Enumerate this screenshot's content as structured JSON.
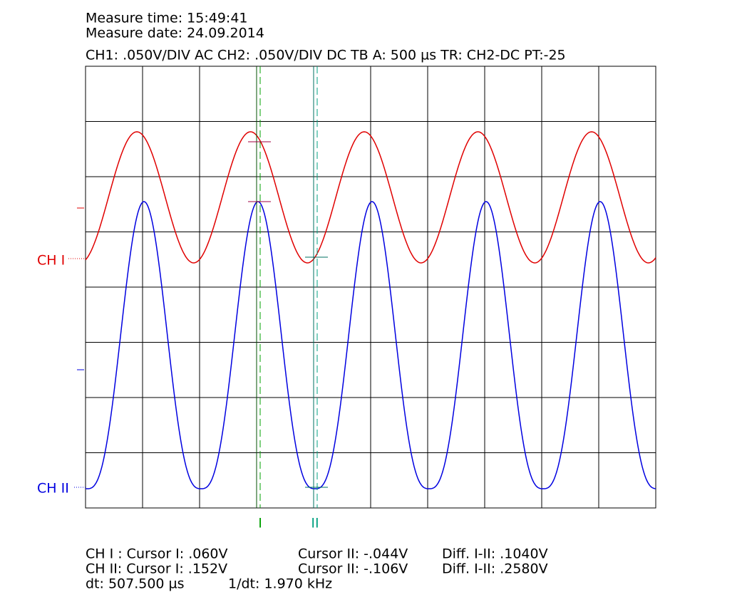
{
  "header": {
    "measure_time": "Measure time: 15:49:41",
    "measure_date": "Measure date: 24.09.2014",
    "settings": "CH1: .050V/DIV AC  CH2: .050V/DIV DC   TB A: 500 µs  TR: CH2-DC  PT:-25"
  },
  "channels": {
    "ch1": "CH I",
    "ch2": "CH II"
  },
  "cursors": [
    "I",
    "II"
  ],
  "readout": {
    "row1": [
      "CH I :  Cursor I: .060V",
      "Cursor II: -.044V",
      "Diff. I-II: .1040V"
    ],
    "row2": [
      "CH II:  Cursor I: .152V",
      "Cursor II: -.106V",
      "Diff. I-II: .2580V"
    ],
    "row3": [
      "dt: 507.500 µs",
      "1/dt: 1.970 kHz"
    ]
  }
}
